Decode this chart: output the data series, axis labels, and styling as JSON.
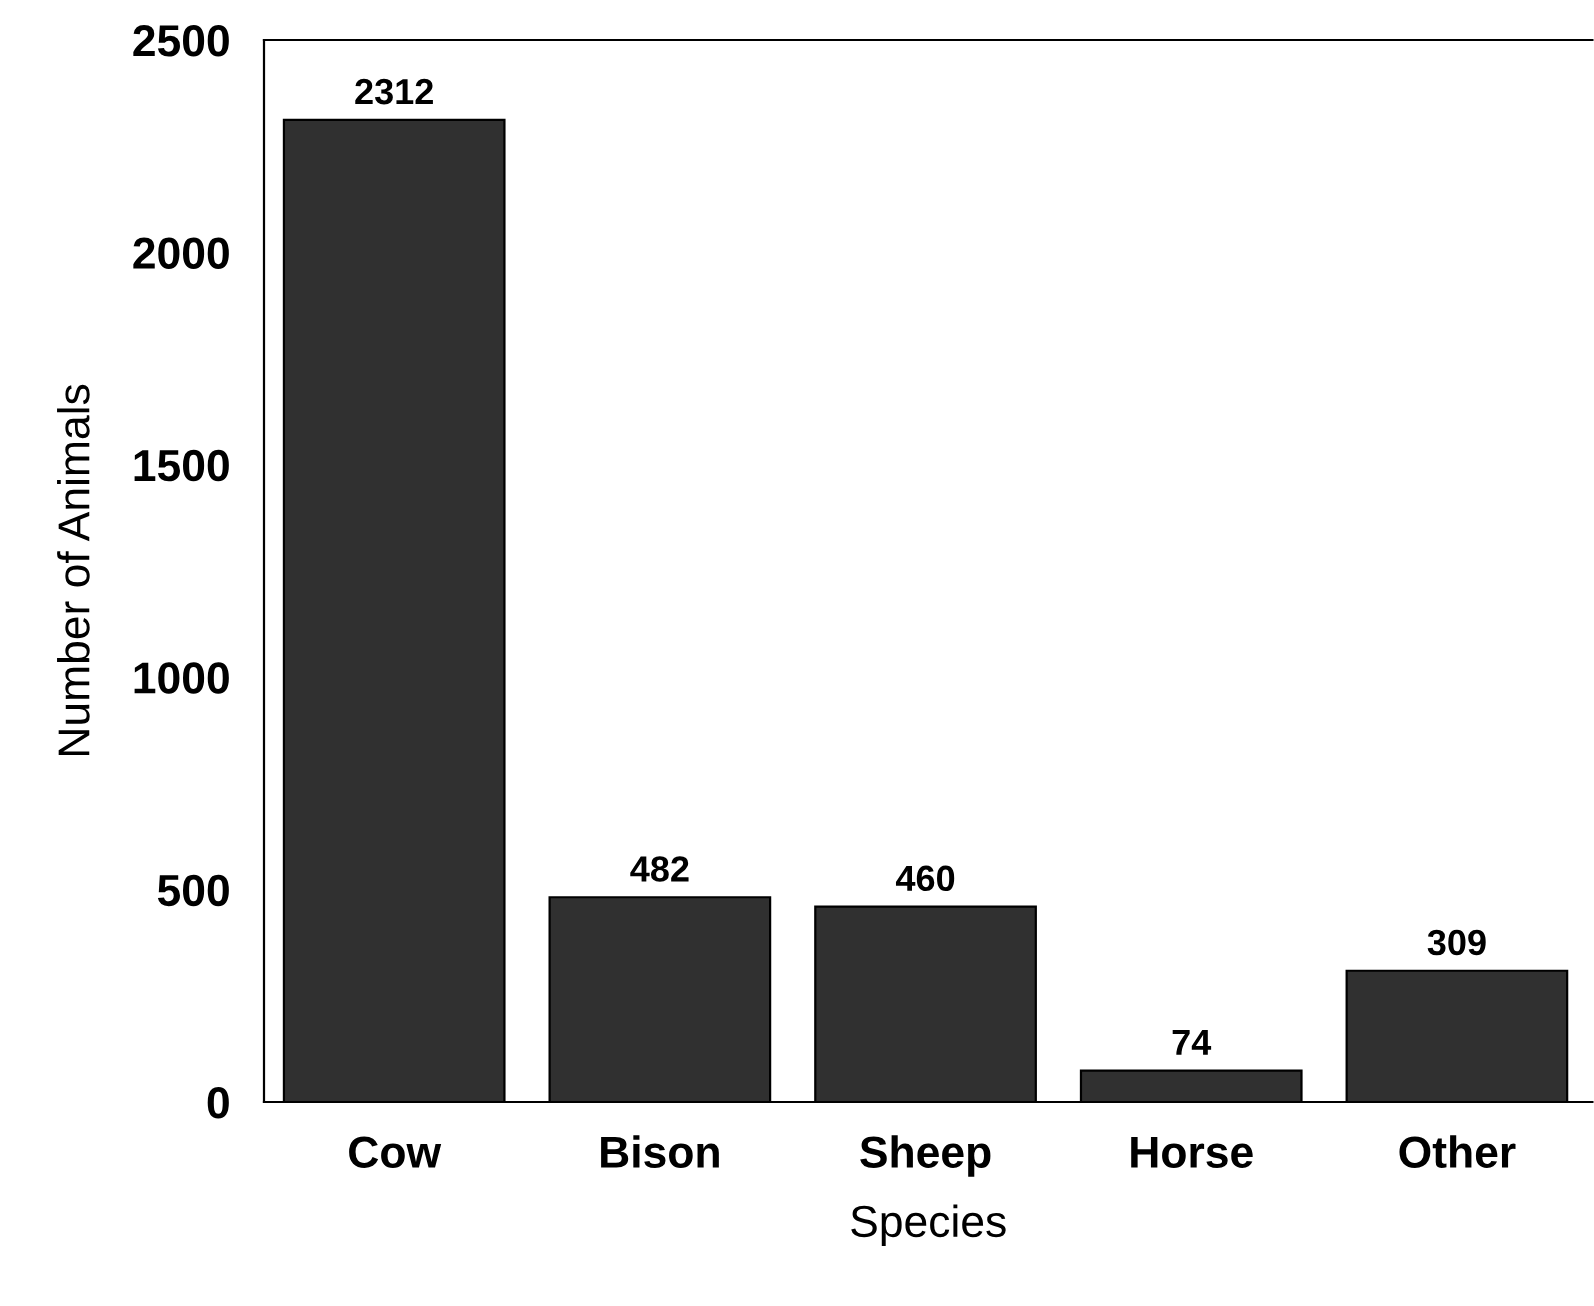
{
  "chart_data": {
    "type": "bar",
    "xlabel": "Species",
    "ylabel": "Number of Animals",
    "categories": [
      "Cow",
      "Bison",
      "Sheep",
      "Horse",
      "Other"
    ],
    "values": [
      2312,
      482,
      460,
      74,
      309
    ],
    "color": "#303030",
    "ylim": [
      0,
      2500
    ],
    "yticks": [
      0,
      500,
      1000,
      1500,
      2000,
      2500
    ],
    "grid": false,
    "data_labels": true
  }
}
